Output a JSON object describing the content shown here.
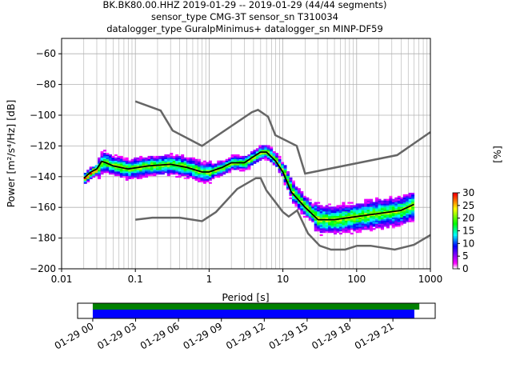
{
  "chart_data": {
    "type": "heatmap",
    "title_lines": [
      "BK.BK80.00.HHZ   2019-01-29 -- 2019-01-29  (44/44 segments)",
      "sensor_type CMG-3T sensor_sn T310034",
      "datalogger_type GuralpMinimus+ datalogger_sn MINP-DF59"
    ],
    "xlabel": "Period [s]",
    "ylabel": "Power [m²/s⁴/Hz] [dB]",
    "xscale": "log",
    "xlim": [
      0.01,
      1000
    ],
    "ylim": [
      -200,
      -50
    ],
    "xticks": [
      0.01,
      0.1,
      1,
      10,
      100,
      1000
    ],
    "xtick_labels": [
      "0.01",
      "0.1",
      "1",
      "10",
      "100",
      "1000"
    ],
    "yticks": [
      -200,
      -180,
      -160,
      -140,
      -120,
      -100,
      -80,
      -60
    ],
    "ytick_labels": [
      "−200",
      "−180",
      "−160",
      "−140",
      "−120",
      "−100",
      "−80",
      "−60"
    ],
    "grid": true,
    "noise_model_high": [
      [
        0.1,
        -91
      ],
      [
        0.22,
        -97
      ],
      [
        0.32,
        -110
      ],
      [
        0.8,
        -120
      ],
      [
        3.8,
        -98
      ],
      [
        4.6,
        -96.5
      ],
      [
        6.3,
        -101
      ],
      [
        7.9,
        -113
      ],
      [
        15.4,
        -120
      ],
      [
        20,
        -138
      ],
      [
        354,
        -126
      ],
      [
        1000,
        -111
      ]
    ],
    "noise_model_low": [
      [
        0.1,
        -168
      ],
      [
        0.17,
        -166.7
      ],
      [
        0.4,
        -166.7
      ],
      [
        0.8,
        -169
      ],
      [
        1.24,
        -163
      ],
      [
        2.4,
        -148
      ],
      [
        4.3,
        -141
      ],
      [
        5,
        -141
      ],
      [
        6,
        -149
      ],
      [
        10,
        -163
      ],
      [
        12,
        -166
      ],
      [
        15.6,
        -162
      ],
      [
        21.9,
        -177
      ],
      [
        31.6,
        -185
      ],
      [
        45,
        -187.5
      ],
      [
        70,
        -187.5
      ],
      [
        101,
        -185
      ],
      [
        154,
        -185
      ],
      [
        328,
        -187.5
      ],
      [
        600,
        -184.4
      ],
      [
        1000,
        -178
      ]
    ],
    "mean_curve": [
      [
        0.02,
        -141
      ],
      [
        0.025,
        -137
      ],
      [
        0.03,
        -135
      ],
      [
        0.035,
        -130
      ],
      [
        0.04,
        -131
      ],
      [
        0.05,
        -133
      ],
      [
        0.08,
        -135
      ],
      [
        0.15,
        -133
      ],
      [
        0.3,
        -132
      ],
      [
        0.5,
        -134
      ],
      [
        0.8,
        -137
      ],
      [
        1,
        -137
      ],
      [
        1.5,
        -134
      ],
      [
        2,
        -131
      ],
      [
        3,
        -131
      ],
      [
        4,
        -127
      ],
      [
        5,
        -124
      ],
      [
        6,
        -124
      ],
      [
        8,
        -130
      ],
      [
        10,
        -137
      ],
      [
        13,
        -150
      ],
      [
        20,
        -160
      ],
      [
        30,
        -168
      ],
      [
        50,
        -168
      ],
      [
        100,
        -166
      ],
      [
        200,
        -164
      ],
      [
        400,
        -162
      ],
      [
        600,
        -158
      ]
    ],
    "colorbar": {
      "label": "[%]",
      "range": [
        0,
        30
      ],
      "ticks": [
        "0",
        "5",
        "10",
        "15",
        "20",
        "25",
        "30"
      ]
    },
    "coverage": {
      "range_hours": [
        -1.06,
        23.96
      ],
      "tick_labels": [
        "01-29 00",
        "01-29 03",
        "01-29 06",
        "01-29 09",
        "01-29 12",
        "01-29 15",
        "01-29 18",
        "01-29 21"
      ],
      "tick_hours": [
        0,
        3,
        6,
        9,
        12,
        15,
        18,
        21
      ],
      "data_bar_hours": [
        0,
        22.85
      ],
      "used_bar_hours": [
        0,
        22.5
      ],
      "colors": {
        "data": "#008000",
        "used": "#0000ff"
      }
    }
  }
}
